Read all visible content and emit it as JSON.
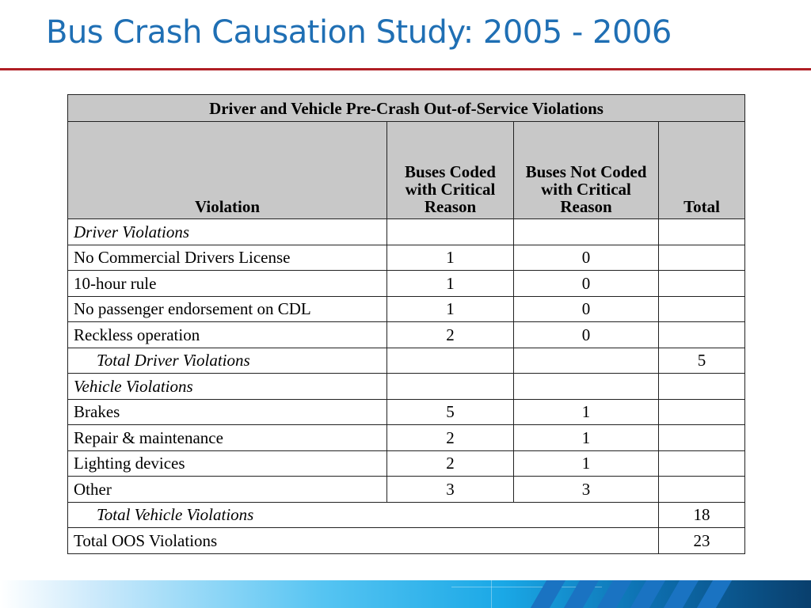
{
  "title": "Bus Crash Causation Study: 2005 - 2006",
  "table": {
    "caption": "Driver and Vehicle Pre-Crash Out-of-Service Violations",
    "columns": {
      "violation": "Violation",
      "coded": "Buses Coded with Critical Reason",
      "not_coded": "Buses Not Coded with Critical Reason",
      "total": "Total"
    },
    "driver_section": "Driver Violations",
    "driver_rows": [
      {
        "violation": "No Commercial Drivers License",
        "coded": "1",
        "not_coded": "0",
        "total": ""
      },
      {
        "violation": "10-hour rule",
        "coded": "1",
        "not_coded": "0",
        "total": ""
      },
      {
        "violation": "No passenger endorsement on CDL",
        "coded": "1",
        "not_coded": "0",
        "total": ""
      },
      {
        "violation": "Reckless operation",
        "coded": "2",
        "not_coded": "0",
        "total": ""
      }
    ],
    "driver_total": {
      "label": "Total Driver Violations",
      "value": "5"
    },
    "vehicle_section": "Vehicle Violations",
    "vehicle_rows": [
      {
        "violation": "Brakes",
        "coded": "5",
        "not_coded": "1",
        "total": ""
      },
      {
        "violation": "Repair & maintenance",
        "coded": "2",
        "not_coded": "1",
        "total": ""
      },
      {
        "violation": "Lighting devices",
        "coded": "2",
        "not_coded": "1",
        "total": ""
      },
      {
        "violation": "Other",
        "coded": "3",
        "not_coded": "3",
        "total": ""
      }
    ],
    "vehicle_total": {
      "label": "Total Vehicle Violations",
      "value": "18"
    },
    "grand_total": {
      "label": "Total OOS Violations",
      "value": "23"
    }
  },
  "colors": {
    "title": "#1f6fb4",
    "rule": "#b01f24",
    "header_fill": "#c8c8c8"
  }
}
